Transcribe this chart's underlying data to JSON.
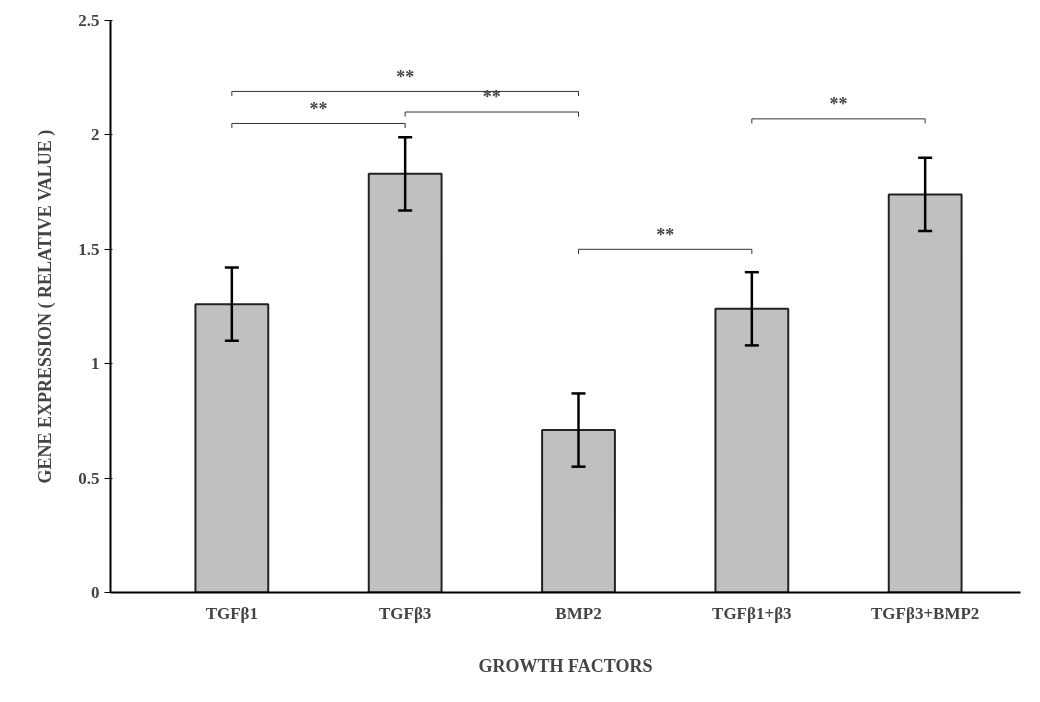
{
  "chart_data": {
    "type": "bar",
    "xlabel": "GROWTH FACTORS",
    "ylabel": "GENE EXPRESSION ( RELATIVE VALUE )",
    "categories": [
      "TGFβ1",
      "TGFβ3",
      "BMP2",
      "TGFβ1+β3",
      "TGFβ3+BMP2"
    ],
    "values": [
      1.26,
      1.83,
      0.71,
      1.24,
      1.74
    ],
    "errors": [
      0.16,
      0.16,
      0.16,
      0.16,
      0.16
    ],
    "color": "#c0c0c0",
    "ylim": [
      0,
      2.5
    ],
    "yticks": [
      0,
      0.5,
      1,
      1.5,
      2,
      2.5
    ],
    "grid": false,
    "annotations": [
      "**",
      "**",
      "**",
      "**",
      "**"
    ]
  }
}
